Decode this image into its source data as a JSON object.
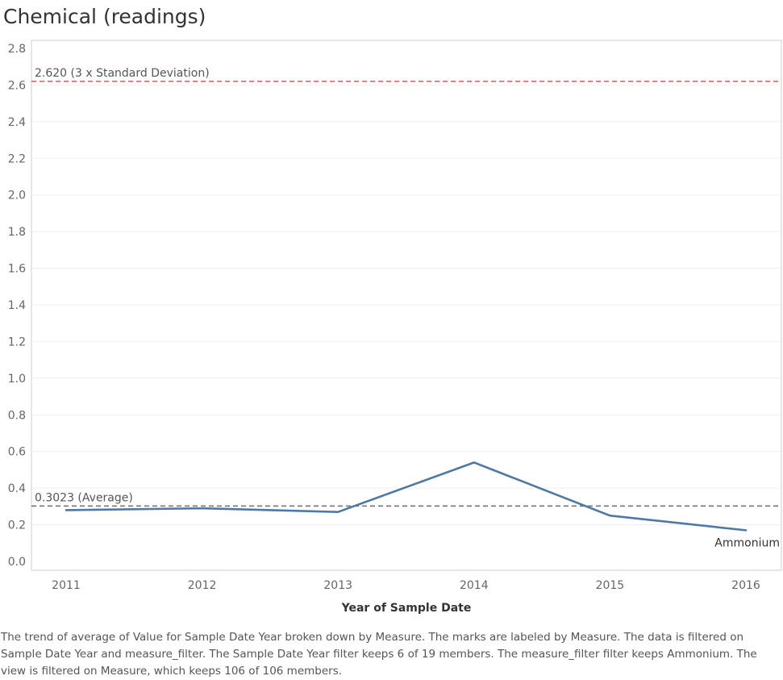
{
  "title": "Chemical (readings)",
  "chart_data": {
    "type": "line",
    "title": "Chemical (readings)",
    "xlabel": "Year of Sample Date",
    "ylabel": "",
    "categories": [
      "2011",
      "2012",
      "2013",
      "2014",
      "2015",
      "2016"
    ],
    "series": [
      {
        "name": "Ammonium",
        "values": [
          0.28,
          0.29,
          0.27,
          0.54,
          0.25,
          0.17
        ],
        "color": "#4e79a7"
      }
    ],
    "ylim": [
      0.0,
      2.8
    ],
    "yticks": [
      "0.0",
      "0.2",
      "0.4",
      "0.6",
      "0.8",
      "1.0",
      "1.2",
      "1.4",
      "1.6",
      "1.8",
      "2.0",
      "2.2",
      "2.4",
      "2.6",
      "2.8"
    ],
    "reference_lines": [
      {
        "value": 2.62,
        "label": "2.620 (3 x Standard Deviation)",
        "color": "#e15759"
      },
      {
        "value": 0.3023,
        "label": "0.3023 (Average)",
        "color": "#777777"
      }
    ],
    "grid": true,
    "legend": "none"
  },
  "caption": "The trend of average of Value for Sample Date Year broken down by Measure.  The marks are labeled by Measure. The data is filtered on Sample Date Year and measure_filter. The Sample Date Year filter keeps 6 of 19 members. The measure_filter filter keeps Ammonium. The view is filtered on Measure, which keeps 106 of 106 members."
}
